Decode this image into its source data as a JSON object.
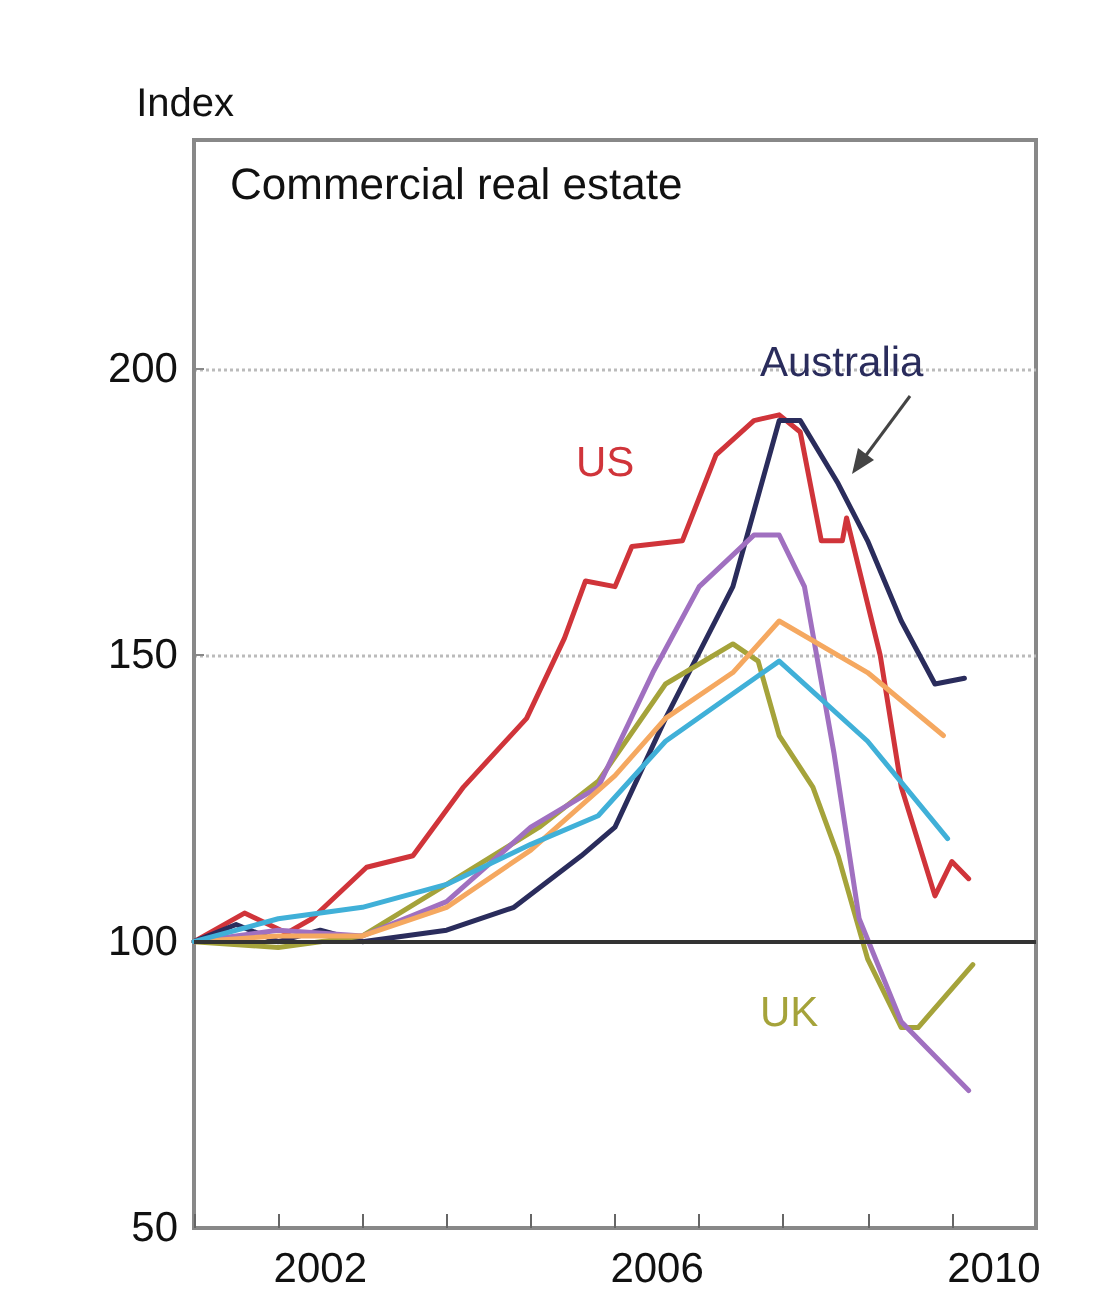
{
  "chart_data": {
    "type": "line",
    "title": "Commercial real estate",
    "ylabel": "Index",
    "xlim": [
      2001,
      2011
    ],
    "xticks": [
      {
        "value": 2001,
        "label": null
      },
      {
        "value": 2002,
        "label": null
      },
      {
        "value": 2003,
        "label": null
      },
      {
        "value": 2004,
        "label": null
      },
      {
        "value": 2005,
        "label": null
      },
      {
        "value": 2006,
        "label": null
      },
      {
        "value": 2007,
        "label": null
      },
      {
        "value": 2008,
        "label": null
      },
      {
        "value": 2009,
        "label": null
      },
      {
        "value": 2010,
        "label": null
      },
      {
        "value": 2002.5,
        "label": "2002"
      },
      {
        "value": 2006.5,
        "label": "2006"
      },
      {
        "value": 2010.5,
        "label": "2010"
      }
    ],
    "ylim": [
      50,
      240
    ],
    "yticks": [
      50,
      100,
      150,
      200
    ],
    "grid": "y",
    "legend": false,
    "marker": "none",
    "line_style": "solid",
    "ref_lines": [
      {
        "axis": "y",
        "value": 100,
        "color": "#333333"
      }
    ],
    "series": [
      {
        "name": "US",
        "color": "#d0343a",
        "x": [
          2001,
          2001.6,
          2002.1,
          2002.4,
          2003.05,
          2003.6,
          2004.2,
          2004.95,
          2005.4,
          2005.65,
          2006,
          2006.2,
          2006.8,
          2007.2,
          2007.65,
          2007.95,
          2008.2,
          2008.45,
          2008.7,
          2008.75,
          2009.15,
          2009.4,
          2009.8,
          2010,
          2010.2
        ],
        "values": [
          100,
          105,
          101.5,
          104,
          113,
          115,
          127,
          139,
          153,
          163,
          162,
          169,
          170,
          185,
          191,
          192,
          189,
          170,
          170,
          174,
          150,
          127,
          108,
          114,
          111
        ]
      },
      {
        "name": "Australia",
        "color": "#2a2c5c",
        "x": [
          2001,
          2001.5,
          2002,
          2002.5,
          2003,
          2004,
          2004.8,
          2005.6,
          2006,
          2006.6,
          2007.4,
          2007.95,
          2008.2,
          2008.65,
          2009,
          2009.4,
          2009.8,
          2010.15
        ],
        "values": [
          100,
          103,
          100,
          102,
          100,
          102,
          106,
          115,
          120,
          139,
          162,
          191,
          191,
          180,
          170,
          156,
          145,
          146
        ]
      },
      {
        "name": "UK",
        "color": "#a5a33a",
        "x": [
          2001,
          2002,
          2003,
          2004,
          2005.1,
          2005.8,
          2006.6,
          2007.4,
          2007.7,
          2007.95,
          2008.35,
          2008.65,
          2009,
          2009.4,
          2009.6,
          2010.25
        ],
        "values": [
          100,
          99,
          101,
          110,
          120,
          128,
          145,
          152,
          149,
          136,
          127,
          115,
          97,
          85,
          85,
          96
        ]
      },
      {
        "color": "#a070c0",
        "x": [
          2001,
          2002,
          2003,
          2004,
          2005,
          2005.8,
          2006.45,
          2007,
          2007.65,
          2007.95,
          2008.25,
          2008.6,
          2008.9,
          2009.4,
          2010.2
        ],
        "values": [
          100,
          102,
          101,
          107,
          120,
          127,
          147,
          162,
          171,
          171,
          162,
          133,
          104,
          86,
          74
        ]
      },
      {
        "color": "#f5a860",
        "x": [
          2001,
          2002,
          2003,
          2004,
          2005,
          2006,
          2006.6,
          2007.4,
          2007.95,
          2009,
          2009.9
        ],
        "values": [
          100,
          101,
          101,
          106,
          116,
          129,
          139,
          147,
          156,
          147,
          136
        ]
      },
      {
        "color": "#40b0d8",
        "x": [
          2001,
          2002,
          2003,
          2004,
          2005,
          2005.8,
          2006.6,
          2007.95,
          2009,
          2009.95
        ],
        "values": [
          100,
          104,
          106,
          110,
          117,
          122,
          135,
          149,
          135,
          118
        ]
      }
    ]
  }
}
